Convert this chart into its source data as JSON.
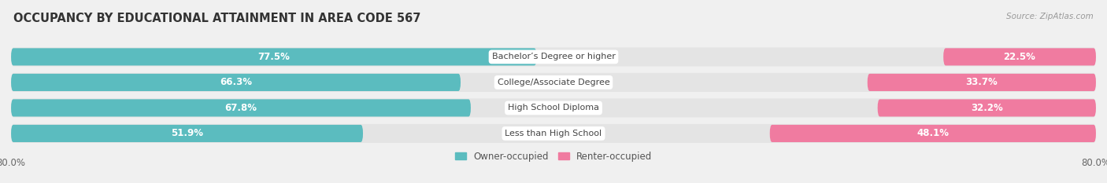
{
  "title": "OCCUPANCY BY EDUCATIONAL ATTAINMENT IN AREA CODE 567",
  "source": "Source: ZipAtlas.com",
  "categories": [
    "Less than High School",
    "High School Diploma",
    "College/Associate Degree",
    "Bachelor’s Degree or higher"
  ],
  "owner_values": [
    51.9,
    67.8,
    66.3,
    77.5
  ],
  "renter_values": [
    48.1,
    32.2,
    33.7,
    22.5
  ],
  "owner_color": "#5bbcbf",
  "renter_color": "#f07ba0",
  "owner_label": "Owner-occupied",
  "renter_label": "Renter-occupied",
  "xlim": 80.0,
  "xlim_label_left": "80.0%",
  "xlim_label_right": "80.0%",
  "background_color": "#f0f0f0",
  "bar_background_color": "#e4e4e4",
  "title_fontsize": 10.5,
  "legend_fontsize": 8.5,
  "value_fontsize": 8.5,
  "category_fontsize": 8.0,
  "bar_height": 0.68
}
